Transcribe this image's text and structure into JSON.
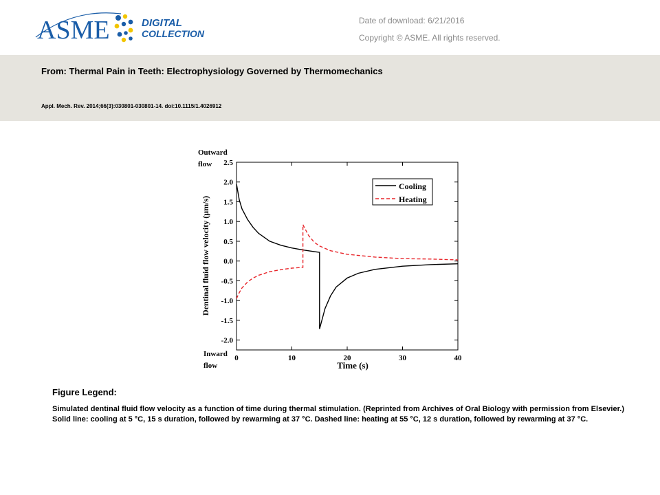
{
  "header": {
    "logo_text": "ASME",
    "logo_sub1": "DIGITAL",
    "logo_sub2": "COLLECTION",
    "download_date": "Date of download: 6/21/2016",
    "copyright": "Copyright © ASME. All rights reserved.",
    "from_title": "From: Thermal Pain in Teeth: Electrophysiology Governed by Thermomechanics",
    "citation": "Appl. Mech. Rev. 2014;66(3):030801-030801-14. doi:10.1115/1.4026912"
  },
  "colors": {
    "header_band": "#e6e4de",
    "logo_blue": "#1a5da8",
    "logo_yellow": "#f2c500",
    "cooling": "#000000",
    "heating": "#e8262b"
  },
  "figure_legend": {
    "title": "Figure Legend:",
    "text": "Simulated dentinal fluid flow velocity as a function of time during thermal stimulation. (Reprinted from Archives of Oral Biology with permission from Elsevier.) Solid line: cooling at 5 °C, 15 s duration, followed by rewarming at 37 °C. Dashed line: heating at 55 °C, 12 s duration, followed by rewarming at 37 °C."
  },
  "chart_data": {
    "type": "line",
    "title": "",
    "xlabel": "Time (s)",
    "ylabel": "Dentinal fluid flow velocity (μm/s)",
    "top_annotation_1": "Outward",
    "top_annotation_2": "flow",
    "bottom_annotation_1": "Inward",
    "bottom_annotation_2": "flow",
    "xlim": [
      0,
      40
    ],
    "ylim": [
      -2.25,
      2.5
    ],
    "xticks": [
      0,
      10,
      20,
      30,
      40
    ],
    "yticks": [
      2.5,
      2.0,
      1.5,
      1.0,
      0.5,
      0.0,
      -0.5,
      -1.0,
      -1.5,
      -2.0
    ],
    "grid": false,
    "legend_position": "top-right",
    "series": [
      {
        "name": "Cooling",
        "style": "solid",
        "color": "#000000",
        "points": [
          [
            0,
            1.95
          ],
          [
            0.5,
            1.55
          ],
          [
            1,
            1.32
          ],
          [
            2,
            1.05
          ],
          [
            3,
            0.85
          ],
          [
            4,
            0.7
          ],
          [
            5,
            0.6
          ],
          [
            6,
            0.5
          ],
          [
            8,
            0.4
          ],
          [
            10,
            0.33
          ],
          [
            12,
            0.28
          ],
          [
            14,
            0.24
          ],
          [
            15,
            0.22
          ],
          [
            15,
            -1.72
          ],
          [
            16,
            -1.2
          ],
          [
            17,
            -0.88
          ],
          [
            18,
            -0.66
          ],
          [
            20,
            -0.43
          ],
          [
            22,
            -0.31
          ],
          [
            25,
            -0.21
          ],
          [
            30,
            -0.13
          ],
          [
            35,
            -0.09
          ],
          [
            40,
            -0.07
          ]
        ]
      },
      {
        "name": "Heating",
        "style": "dashed",
        "color": "#e8262b",
        "points": [
          [
            0,
            -0.95
          ],
          [
            0.5,
            -0.8
          ],
          [
            1,
            -0.68
          ],
          [
            2,
            -0.53
          ],
          [
            3,
            -0.43
          ],
          [
            4,
            -0.36
          ],
          [
            6,
            -0.27
          ],
          [
            8,
            -0.22
          ],
          [
            10,
            -0.18
          ],
          [
            12,
            -0.16
          ],
          [
            12,
            0.92
          ],
          [
            13,
            0.65
          ],
          [
            14,
            0.48
          ],
          [
            15,
            0.38
          ],
          [
            17,
            0.26
          ],
          [
            20,
            0.17
          ],
          [
            25,
            0.1
          ],
          [
            30,
            0.06
          ],
          [
            35,
            0.05
          ],
          [
            40,
            0.03
          ]
        ]
      }
    ]
  }
}
